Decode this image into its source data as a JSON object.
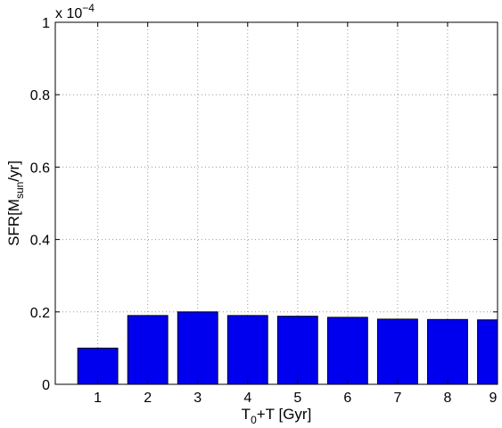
{
  "chart_data": {
    "type": "bar",
    "categories": [
      "1",
      "2",
      "3",
      "4",
      "5",
      "6",
      "7",
      "8",
      "9"
    ],
    "values": [
      0.1,
      0.19,
      0.2,
      0.19,
      0.188,
      0.185,
      0.18,
      0.179,
      0.178
    ],
    "ylim": [
      0,
      1
    ],
    "xlim": [
      0.15,
      9
    ],
    "y_ticks": [
      "0",
      "0.2",
      "0.4",
      "0.6",
      "0.8",
      "1"
    ],
    "y_exponent_prefix": "x 10",
    "y_exponent_power": "−4",
    "xlabel": {
      "main": "T",
      "sub": "0",
      "rest": "+T [Gyr]"
    },
    "ylabel": {
      "main": "SFR[M",
      "sub": "sun",
      "rest": "/yr]"
    },
    "grid": true,
    "bar_color": "#0000ee"
  }
}
